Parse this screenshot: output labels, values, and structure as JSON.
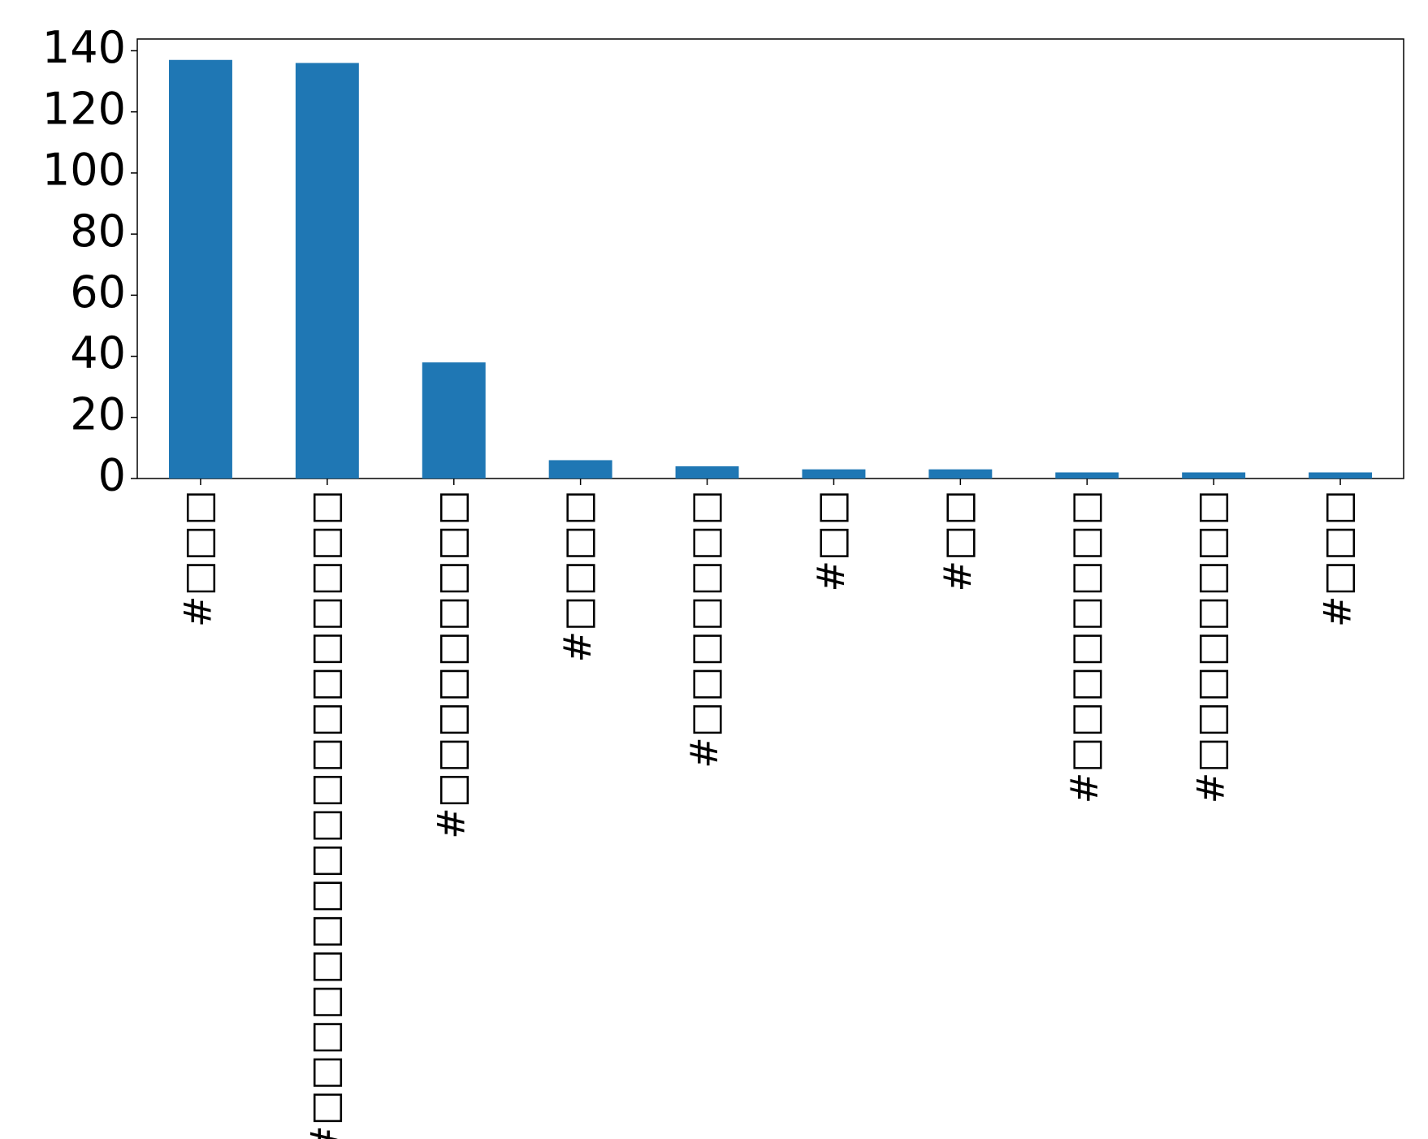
{
  "chart_data": {
    "type": "bar",
    "categories": [
      "#□□□",
      "#□□□□□□□□□□□□□□□□□□",
      "#□□□□□□□□□",
      "#□□□□",
      "#□□□□□□□",
      "#□□",
      "#□□",
      "#□□□□□□□□",
      "#□□□□□□□□",
      "#□□□"
    ],
    "values": [
      137,
      136,
      38,
      6,
      4,
      3,
      3,
      2,
      2,
      2
    ],
    "color": "#1f77b4",
    "ylim": [
      0,
      143.85
    ],
    "yticks": [
      0,
      20,
      40,
      60,
      80,
      100,
      120,
      140
    ],
    "grid": false
  }
}
